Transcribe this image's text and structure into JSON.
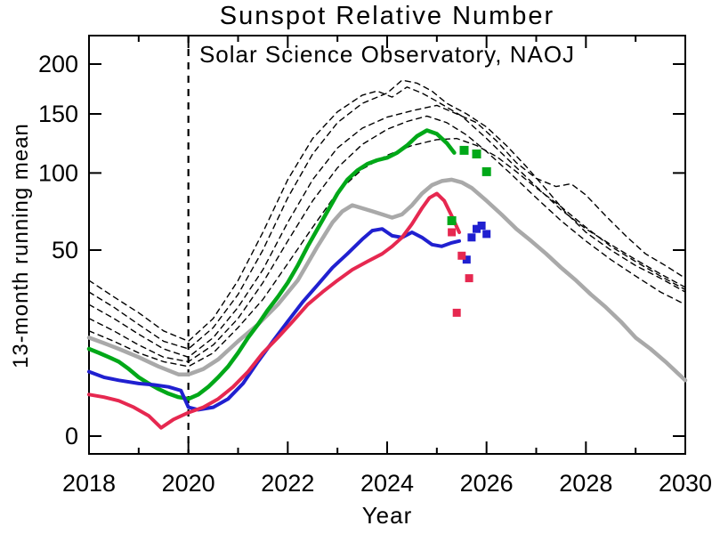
{
  "window": {
    "background": "#ffffff"
  },
  "chart_data": {
    "type": "line",
    "title": "Sunspot Relative Number",
    "subtitle": "Solar Science Observatory, NAOJ",
    "xlabel": "Year",
    "ylabel": "13-month running mean",
    "x_range": [
      2018,
      2030
    ],
    "y_range": [
      0,
      232
    ],
    "y_scale": "sqrt",
    "x_ticks": [
      2018,
      2020,
      2022,
      2024,
      2026,
      2028,
      2030
    ],
    "x_minor_step": 1,
    "y_ticks": [
      0,
      50,
      100,
      150,
      200
    ],
    "grid": false,
    "legend": "none",
    "colors": {
      "green": "#00a818",
      "gray": "#a9a9a9",
      "blue": "#2020d0",
      "red": "#e62850",
      "axis": "#000000"
    },
    "annotations": {
      "vline_x": 2020,
      "vline_style": "dashed"
    },
    "series": [
      {
        "name": "dashed-cycle-1",
        "color": "#000000",
        "style": "dashed",
        "width": 1.4,
        "points": [
          [
            2018,
            35
          ],
          [
            2018.5,
            28
          ],
          [
            2019,
            22
          ],
          [
            2019.5,
            16
          ],
          [
            2020,
            13
          ],
          [
            2020.5,
            20
          ],
          [
            2021,
            35
          ],
          [
            2021.5,
            60
          ],
          [
            2022,
            95
          ],
          [
            2022.5,
            128
          ],
          [
            2023,
            152
          ],
          [
            2023.5,
            168
          ],
          [
            2023.8,
            172
          ],
          [
            2024.1,
            166
          ],
          [
            2024.4,
            176
          ],
          [
            2024.7,
            170
          ],
          [
            2025,
            162
          ],
          [
            2025.5,
            148
          ],
          [
            2026,
            128
          ],
          [
            2026.5,
            108
          ],
          [
            2027,
            90
          ],
          [
            2027.5,
            74
          ],
          [
            2028,
            62
          ],
          [
            2028.5,
            53
          ],
          [
            2029,
            45
          ],
          [
            2029.5,
            38
          ],
          [
            2030,
            32
          ]
        ]
      },
      {
        "name": "dashed-cycle-2",
        "color": "#000000",
        "style": "dashed",
        "width": 1.4,
        "points": [
          [
            2018,
            30
          ],
          [
            2018.5,
            24
          ],
          [
            2019,
            18
          ],
          [
            2019.5,
            13
          ],
          [
            2020,
            11
          ],
          [
            2020.5,
            17
          ],
          [
            2021,
            29
          ],
          [
            2021.5,
            50
          ],
          [
            2022,
            82
          ],
          [
            2022.5,
            115
          ],
          [
            2023,
            142
          ],
          [
            2023.5,
            160
          ],
          [
            2024,
            170
          ],
          [
            2024.3,
            183
          ],
          [
            2024.6,
            180
          ],
          [
            2024.9,
            172
          ],
          [
            2025.2,
            160
          ],
          [
            2025.6,
            150
          ],
          [
            2026,
            138
          ],
          [
            2026.4,
            122
          ],
          [
            2026.8,
            105
          ],
          [
            2027.2,
            88
          ],
          [
            2027.6,
            72
          ],
          [
            2028,
            60
          ],
          [
            2028.5,
            50
          ],
          [
            2029,
            42
          ],
          [
            2029.5,
            36
          ],
          [
            2030,
            30
          ]
        ]
      },
      {
        "name": "dashed-cycle-3",
        "color": "#000000",
        "style": "dashed",
        "width": 1.4,
        "points": [
          [
            2018,
            25
          ],
          [
            2018.5,
            20
          ],
          [
            2019,
            15
          ],
          [
            2019.5,
            11
          ],
          [
            2020,
            9
          ],
          [
            2020.5,
            14
          ],
          [
            2021,
            24
          ],
          [
            2021.5,
            40
          ],
          [
            2022,
            66
          ],
          [
            2022.5,
            95
          ],
          [
            2023,
            120
          ],
          [
            2023.5,
            137
          ],
          [
            2024,
            147
          ],
          [
            2024.5,
            153
          ],
          [
            2025,
            158
          ],
          [
            2025.4,
            150
          ],
          [
            2025.8,
            142
          ],
          [
            2026.2,
            126
          ],
          [
            2026.6,
            108
          ],
          [
            2027,
            96
          ],
          [
            2027.4,
            90
          ],
          [
            2027.7,
            92
          ],
          [
            2028,
            84
          ],
          [
            2028.4,
            70
          ],
          [
            2028.8,
            58
          ],
          [
            2029.2,
            48
          ],
          [
            2029.6,
            42
          ],
          [
            2030,
            36
          ]
        ]
      },
      {
        "name": "dashed-cycle-4",
        "color": "#000000",
        "style": "dashed",
        "width": 1.4,
        "points": [
          [
            2018,
            20
          ],
          [
            2018.5,
            16
          ],
          [
            2019,
            12
          ],
          [
            2019.5,
            9
          ],
          [
            2020,
            8
          ],
          [
            2020.5,
            12
          ],
          [
            2021,
            20
          ],
          [
            2021.5,
            34
          ],
          [
            2022,
            55
          ],
          [
            2022.5,
            80
          ],
          [
            2023,
            104
          ],
          [
            2023.5,
            123
          ],
          [
            2024,
            136
          ],
          [
            2024.4,
            143
          ],
          [
            2024.8,
            148
          ],
          [
            2025.2,
            142
          ],
          [
            2025.6,
            131
          ],
          [
            2026,
            117
          ],
          [
            2026.5,
            99
          ],
          [
            2027,
            82
          ],
          [
            2027.5,
            67
          ],
          [
            2028,
            55
          ],
          [
            2028.5,
            45
          ],
          [
            2029,
            37
          ],
          [
            2029.5,
            30
          ],
          [
            2030,
            25
          ]
        ]
      },
      {
        "name": "dashed-cycle-5",
        "color": "#000000",
        "style": "dashed",
        "width": 1.4,
        "points": [
          [
            2018,
            16
          ],
          [
            2018.5,
            13
          ],
          [
            2019,
            10
          ],
          [
            2019.5,
            8
          ],
          [
            2020,
            7
          ],
          [
            2020.5,
            10
          ],
          [
            2021,
            17
          ],
          [
            2021.5,
            27
          ],
          [
            2022,
            43
          ],
          [
            2022.5,
            63
          ],
          [
            2023,
            86
          ],
          [
            2023.5,
            103
          ],
          [
            2024,
            114
          ],
          [
            2024.5,
            122
          ],
          [
            2025,
            127
          ],
          [
            2025.4,
            128
          ],
          [
            2025.8,
            122
          ],
          [
            2026.2,
            113
          ],
          [
            2026.6,
            101
          ],
          [
            2027,
            89
          ],
          [
            2027.5,
            76
          ],
          [
            2028,
            63
          ],
          [
            2028.5,
            52
          ],
          [
            2029,
            44
          ],
          [
            2029.5,
            37
          ],
          [
            2030,
            31
          ]
        ]
      },
      {
        "name": "gray-line",
        "color": "#a9a9a9",
        "style": "solid",
        "width": 4.5,
        "points": [
          [
            2018,
            14
          ],
          [
            2018.3,
            12.5
          ],
          [
            2018.6,
            11
          ],
          [
            2019,
            9
          ],
          [
            2019.4,
            7
          ],
          [
            2019.8,
            5.5
          ],
          [
            2020,
            5.5
          ],
          [
            2020.3,
            6.5
          ],
          [
            2020.6,
            8.5
          ],
          [
            2021,
            13
          ],
          [
            2021.4,
            18
          ],
          [
            2021.8,
            25
          ],
          [
            2022.2,
            35
          ],
          [
            2022.6,
            52
          ],
          [
            2022.9,
            66
          ],
          [
            2023.1,
            73
          ],
          [
            2023.3,
            77
          ],
          [
            2023.5,
            75
          ],
          [
            2023.7,
            73
          ],
          [
            2023.9,
            71
          ],
          [
            2024.1,
            69
          ],
          [
            2024.3,
            71
          ],
          [
            2024.5,
            77
          ],
          [
            2024.7,
            85
          ],
          [
            2024.9,
            91
          ],
          [
            2025.1,
            94
          ],
          [
            2025.3,
            95
          ],
          [
            2025.5,
            93
          ],
          [
            2025.7,
            89
          ],
          [
            2026,
            80
          ],
          [
            2026.3,
            71
          ],
          [
            2026.6,
            62
          ],
          [
            2026.9,
            55
          ],
          [
            2027.2,
            48
          ],
          [
            2027.5,
            41
          ],
          [
            2027.8,
            35
          ],
          [
            2028.1,
            29
          ],
          [
            2028.4,
            24
          ],
          [
            2028.7,
            19
          ],
          [
            2029,
            14
          ],
          [
            2029.3,
            11
          ],
          [
            2029.6,
            8
          ],
          [
            2030,
            4.5
          ]
        ]
      },
      {
        "name": "green-line",
        "color": "#00a818",
        "style": "solid",
        "width": 4.5,
        "points": [
          [
            2018,
            11
          ],
          [
            2018.2,
            10
          ],
          [
            2018.4,
            9
          ],
          [
            2018.6,
            8
          ],
          [
            2018.8,
            6.5
          ],
          [
            2019,
            5
          ],
          [
            2019.2,
            4
          ],
          [
            2019.4,
            3.2
          ],
          [
            2019.6,
            2.6
          ],
          [
            2019.8,
            2.2
          ],
          [
            2020,
            2
          ],
          [
            2020.2,
            2.5
          ],
          [
            2020.4,
            3.5
          ],
          [
            2020.6,
            5
          ],
          [
            2020.8,
            7
          ],
          [
            2021,
            10
          ],
          [
            2021.2,
            14
          ],
          [
            2021.4,
            18
          ],
          [
            2021.6,
            23
          ],
          [
            2021.8,
            28
          ],
          [
            2022,
            34
          ],
          [
            2022.2,
            42
          ],
          [
            2022.4,
            52
          ],
          [
            2022.6,
            62
          ],
          [
            2022.8,
            73
          ],
          [
            2023,
            85
          ],
          [
            2023.2,
            95
          ],
          [
            2023.4,
            102
          ],
          [
            2023.6,
            107
          ],
          [
            2023.8,
            110
          ],
          [
            2024,
            112
          ],
          [
            2024.2,
            116
          ],
          [
            2024.4,
            122
          ],
          [
            2024.6,
            130
          ],
          [
            2024.8,
            135
          ],
          [
            2025,
            132
          ],
          [
            2025.2,
            124
          ],
          [
            2025.35,
            116
          ]
        ]
      },
      {
        "name": "blue-line",
        "color": "#2020d0",
        "style": "solid",
        "width": 4,
        "points": [
          [
            2018,
            6
          ],
          [
            2018.3,
            5
          ],
          [
            2018.6,
            4.5
          ],
          [
            2019,
            4
          ],
          [
            2019.3,
            3.8
          ],
          [
            2019.6,
            3.5
          ],
          [
            2019.85,
            3
          ],
          [
            2020,
            1.2
          ],
          [
            2020.2,
            1
          ],
          [
            2020.5,
            1.2
          ],
          [
            2020.8,
            2
          ],
          [
            2021.1,
            4
          ],
          [
            2021.4,
            8
          ],
          [
            2021.7,
            13
          ],
          [
            2022,
            19
          ],
          [
            2022.3,
            26
          ],
          [
            2022.6,
            33
          ],
          [
            2022.9,
            41
          ],
          [
            2023.2,
            48
          ],
          [
            2023.5,
            56
          ],
          [
            2023.7,
            61
          ],
          [
            2023.9,
            62
          ],
          [
            2024.1,
            58
          ],
          [
            2024.3,
            57
          ],
          [
            2024.5,
            60
          ],
          [
            2024.7,
            57
          ],
          [
            2024.9,
            53
          ],
          [
            2025.1,
            52
          ],
          [
            2025.3,
            54
          ],
          [
            2025.45,
            55
          ]
        ]
      },
      {
        "name": "red-line",
        "color": "#e62850",
        "style": "solid",
        "width": 4,
        "points": [
          [
            2018,
            2.5
          ],
          [
            2018.3,
            2.2
          ],
          [
            2018.6,
            1.8
          ],
          [
            2018.9,
            1.2
          ],
          [
            2019.2,
            0.6
          ],
          [
            2019.45,
            0.1
          ],
          [
            2019.7,
            0.4
          ],
          [
            2020,
            0.8
          ],
          [
            2020.3,
            1.2
          ],
          [
            2020.6,
            2
          ],
          [
            2020.9,
            3.5
          ],
          [
            2021.2,
            6
          ],
          [
            2021.5,
            10
          ],
          [
            2021.8,
            14
          ],
          [
            2022.1,
            19
          ],
          [
            2022.4,
            25
          ],
          [
            2022.7,
            30
          ],
          [
            2023,
            35
          ],
          [
            2023.3,
            40
          ],
          [
            2023.6,
            44
          ],
          [
            2023.9,
            48
          ],
          [
            2024.1,
            52
          ],
          [
            2024.3,
            57
          ],
          [
            2024.5,
            65
          ],
          [
            2024.7,
            75
          ],
          [
            2024.85,
            82
          ],
          [
            2025,
            85
          ],
          [
            2025.15,
            80
          ],
          [
            2025.3,
            70
          ],
          [
            2025.45,
            60
          ]
        ]
      }
    ],
    "markers": [
      {
        "name": "green-squares",
        "color": "#00a818",
        "size": 10,
        "points": [
          [
            2025.3,
            67
          ],
          [
            2025.55,
            118
          ],
          [
            2025.8,
            115
          ],
          [
            2026,
            101
          ]
        ]
      },
      {
        "name": "blue-squares",
        "color": "#2020d0",
        "size": 9,
        "points": [
          [
            2025.6,
            45
          ],
          [
            2025.7,
            57
          ],
          [
            2025.8,
            62
          ],
          [
            2025.9,
            64
          ],
          [
            2026,
            59
          ]
        ]
      },
      {
        "name": "red-squares",
        "color": "#e62850",
        "size": 9,
        "points": [
          [
            2025.3,
            60
          ],
          [
            2025.5,
            47
          ],
          [
            2025.65,
            36
          ],
          [
            2025.4,
            22
          ]
        ]
      }
    ]
  }
}
